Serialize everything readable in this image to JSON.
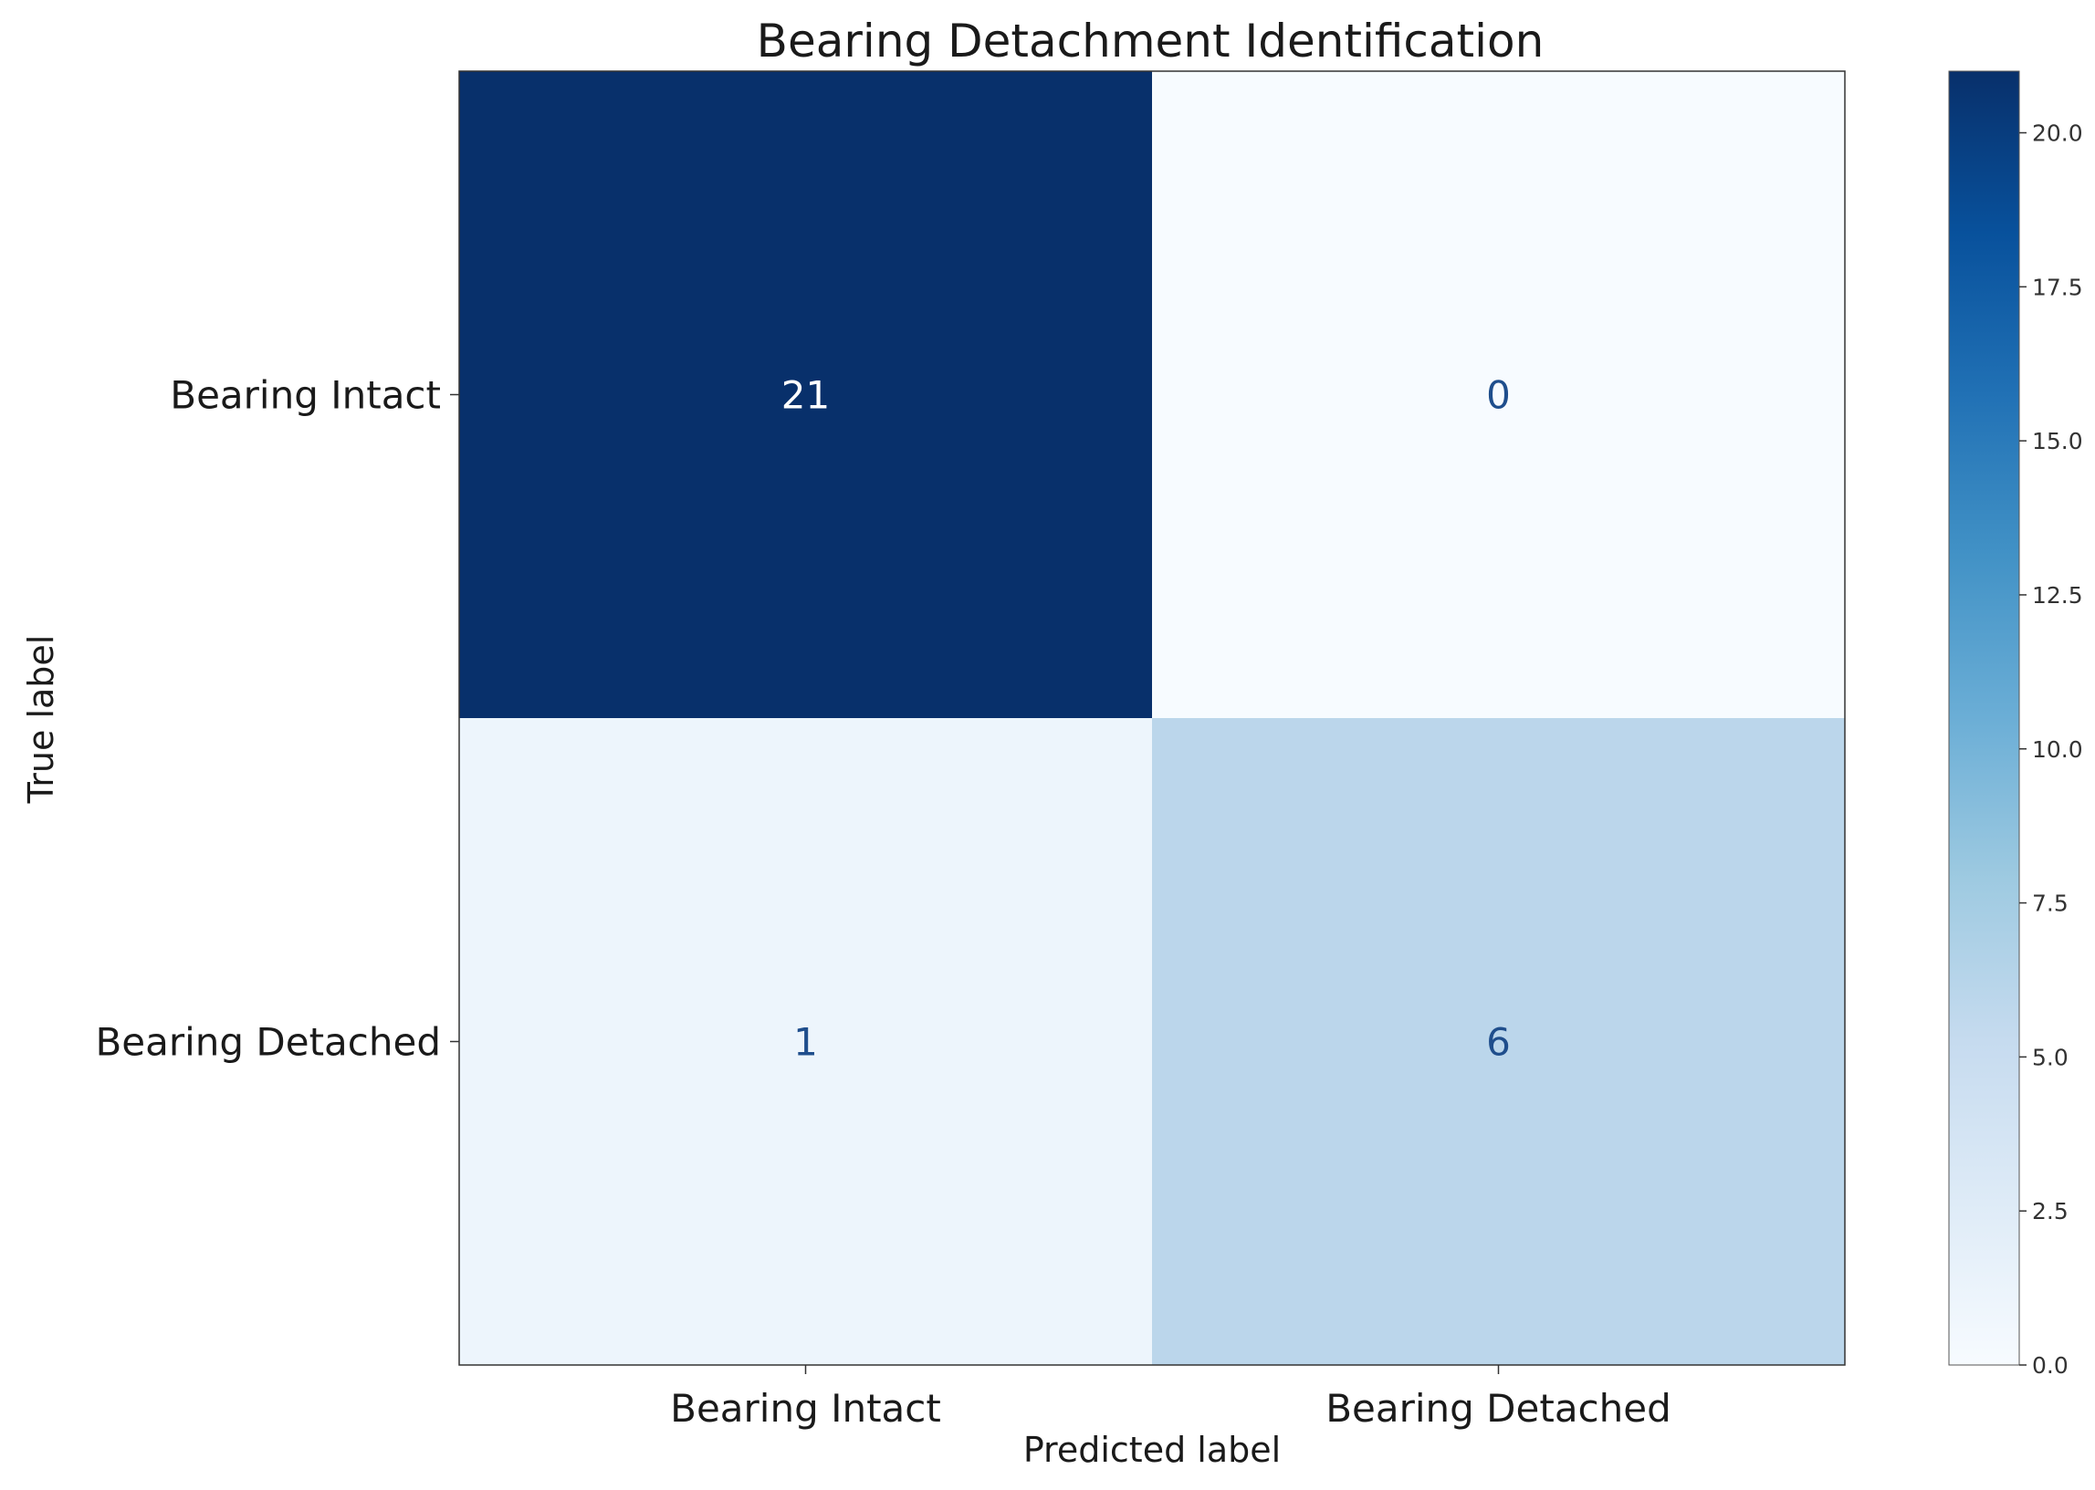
{
  "chart_data": {
    "type": "heatmap",
    "title": "Bearing Detachment Identification",
    "xlabel": "Predicted label",
    "ylabel": "True label",
    "x_categories": [
      "Bearing Intact",
      "Bearing Detached"
    ],
    "y_categories": [
      "Bearing Intact",
      "Bearing Detached"
    ],
    "values": [
      [
        21,
        0
      ],
      [
        1,
        6
      ]
    ],
    "colormap": "Blues",
    "colorbar": {
      "min": 0,
      "max": 21,
      "ticks": [
        0.0,
        2.5,
        5.0,
        7.5,
        10.0,
        12.5,
        15.0,
        17.5,
        20.0
      ],
      "tick_labels": [
        "0.0",
        "2.5",
        "5.0",
        "7.5",
        "10.0",
        "12.5",
        "15.0",
        "17.5",
        "20.0"
      ]
    },
    "grid": false,
    "colors": {
      "dark": "#08306b",
      "light": "#f7fbff",
      "text_on_dark": "#ffffff",
      "text_on_light": "#1f4e8c"
    }
  }
}
